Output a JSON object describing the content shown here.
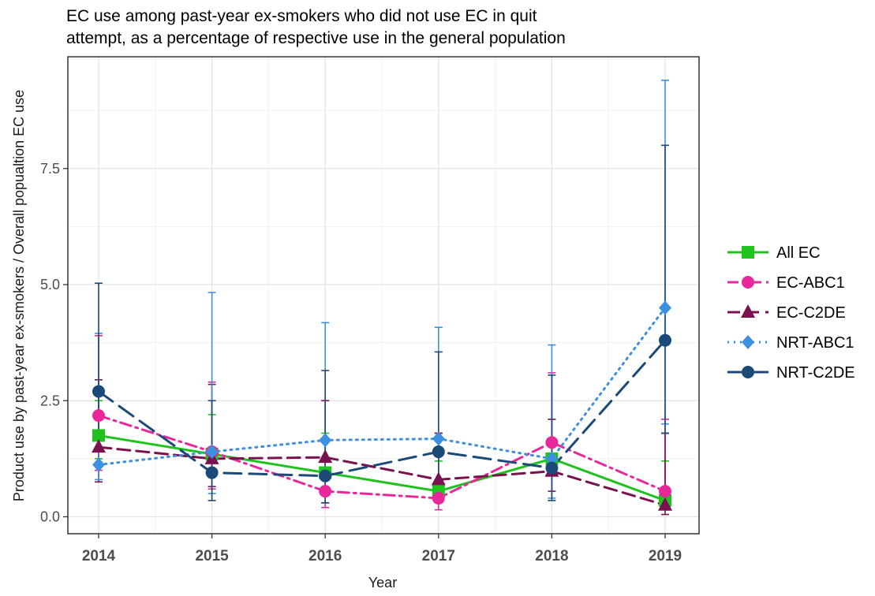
{
  "chart_data": {
    "type": "line",
    "title_lines": [
      "EC use among past-year ex-smokers who did not use EC in quit",
      "attempt, as a percentage of respective use  in  the general population"
    ],
    "xlabel": "Year",
    "ylabel": "Product use by past-year ex-smokers /  Overall popualtion EC use",
    "categories": [
      "2014",
      "2015",
      "2016",
      "2017",
      "2018",
      "2019"
    ],
    "ylim": [
      -0.28,
      9.75
    ],
    "y_ticks": [
      0.0,
      2.5,
      5.0,
      7.5
    ],
    "y_tick_labels": [
      "0.0",
      "2.5",
      "5.0",
      "7.5"
    ],
    "grid": true,
    "legend_position": "right",
    "series": [
      {
        "name": "All EC",
        "color": "#1fc21f",
        "marker": "square",
        "dash": "solid",
        "values": [
          1.75,
          1.35,
          0.95,
          0.55,
          1.25,
          0.35
        ],
        "lower": [
          1.25,
          0.95,
          0.65,
          0.35,
          0.95,
          0.2
        ],
        "upper": [
          2.5,
          2.2,
          1.8,
          1.2,
          2.1,
          1.2
        ]
      },
      {
        "name": "EC-ABC1",
        "color": "#e8279b",
        "marker": "circle",
        "dash": "dashdot",
        "values": [
          2.18,
          1.4,
          0.55,
          0.4,
          1.6,
          0.55
        ],
        "lower": [
          1.0,
          0.6,
          0.2,
          0.15,
          0.9,
          0.15
        ],
        "upper": [
          3.9,
          2.9,
          2.5,
          1.8,
          3.1,
          2.1
        ]
      },
      {
        "name": "EC-C2DE",
        "color": "#7b1250",
        "marker": "triangle",
        "dash": "dashed",
        "values": [
          1.5,
          1.25,
          1.28,
          0.8,
          0.98,
          0.25
        ],
        "lower": [
          0.75,
          0.65,
          0.3,
          0.3,
          0.55,
          0.05
        ],
        "upper": [
          2.95,
          2.85,
          2.5,
          1.8,
          2.1,
          1.8
        ]
      },
      {
        "name": "NRT-ABC1",
        "color": "#3d8fe0",
        "marker": "diamond",
        "dash": "dotted",
        "values": [
          1.12,
          1.4,
          1.65,
          1.68,
          1.25,
          4.5
        ],
        "lower": [
          0.8,
          0.5,
          0.6,
          0.55,
          0.4,
          2.0
        ],
        "upper": [
          3.95,
          4.83,
          4.18,
          4.08,
          3.7,
          9.4
        ]
      },
      {
        "name": "NRT-C2DE",
        "color": "#1c4a78",
        "marker": "circle",
        "dash": "longdash",
        "values": [
          2.7,
          0.95,
          0.88,
          1.4,
          1.05,
          3.8
        ],
        "lower": [
          1.5,
          0.35,
          0.3,
          0.5,
          0.35,
          1.8
        ],
        "upper": [
          5.03,
          2.5,
          3.15,
          3.55,
          3.05,
          8.0
        ]
      }
    ]
  }
}
